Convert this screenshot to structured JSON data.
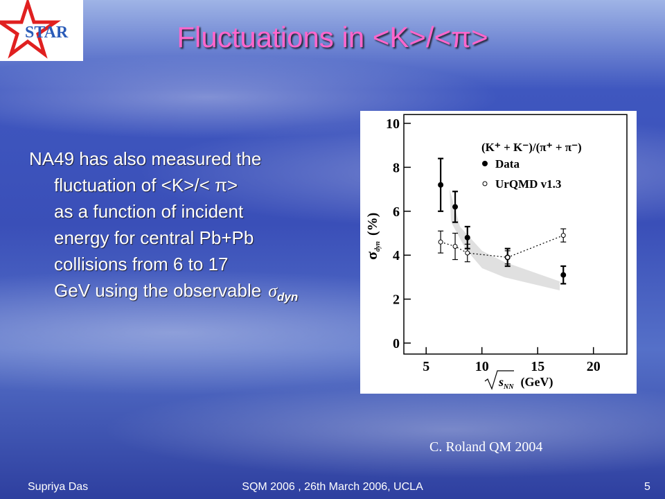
{
  "slide": {
    "logo": "STAR",
    "title": "Fluctuations in <K>/<π>",
    "body_lines": [
      "NA49 has also measured the",
      "fluctuation of <K>/< π>",
      "as a function of incident",
      "energy for central Pb+Pb",
      "collisions from 6 to 17",
      "GeV using the observable"
    ],
    "observable_symbol": "σ",
    "observable_subscript": "dyn",
    "caption": "C. Roland QM 2004",
    "footer_left": "Supriya Das",
    "footer_center": "SQM 2006 , 26th March 2006, UCLA",
    "footer_right": "5"
  },
  "chart_data": {
    "type": "scatter",
    "y_label_symbol": "σ",
    "y_label_subscript": "dyn",
    "y_label_unit": "(%)",
    "x_label_symbol": "s",
    "x_label_subscript": "NN",
    "x_label_unit": "(GeV)",
    "legend_title": "(K⁺ + K⁻)/(π⁺ + π⁻)",
    "x": [
      6.3,
      7.6,
      8.7,
      12.3,
      17.3
    ],
    "series": [
      {
        "name": "Data",
        "color": "#000000",
        "values": [
          7.2,
          6.2,
          4.8,
          3.9,
          3.1
        ],
        "errors": [
          1.2,
          0.7,
          0.5,
          0.4,
          0.4
        ]
      },
      {
        "name": "UrQMD v1.3",
        "color": "#000000",
        "values": [
          4.6,
          4.4,
          4.1,
          3.9,
          4.9
        ],
        "errors": [
          0.5,
          0.6,
          0.4,
          0.3,
          0.3
        ]
      }
    ],
    "xlim": [
      3,
      23
    ],
    "ylim": [
      -0.5,
      10.4
    ],
    "xticks": [
      5,
      10,
      15,
      20
    ],
    "yticks": [
      0,
      2,
      4,
      6,
      8,
      10
    ]
  }
}
